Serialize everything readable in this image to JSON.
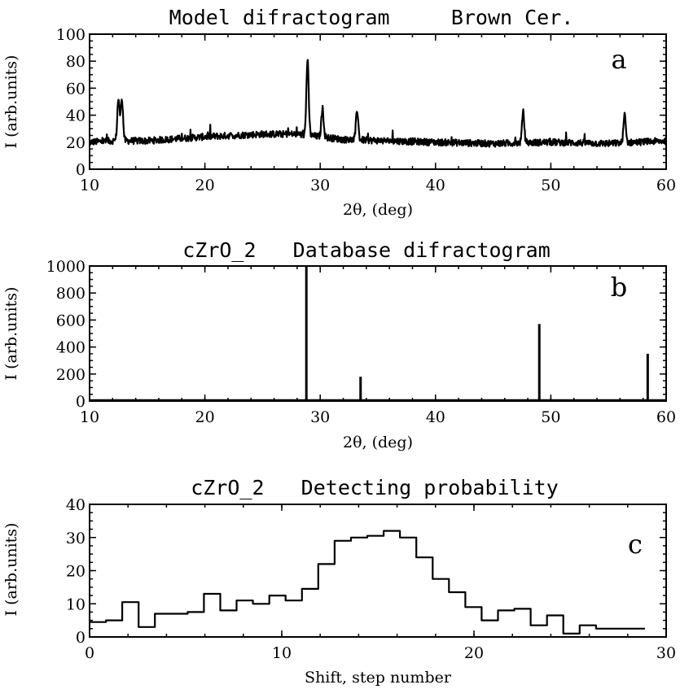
{
  "chart_data": [
    {
      "type": "line",
      "panel_letter": "a",
      "title": "Model difractogram     Brown Cer.",
      "xlabel": "2θ, (deg)",
      "ylabel": "I (arb.units)",
      "xlim": [
        10,
        60
      ],
      "ylim": [
        0,
        100
      ],
      "xticks": [
        10,
        20,
        30,
        40,
        50,
        60
      ],
      "yticks": [
        0,
        20,
        40,
        60,
        80,
        100
      ],
      "baseline": [
        [
          10,
          20
        ],
        [
          12,
          21
        ],
        [
          15,
          21
        ],
        [
          20,
          24
        ],
        [
          25,
          26
        ],
        [
          28,
          26
        ],
        [
          32,
          22
        ],
        [
          40,
          20
        ],
        [
          45,
          19
        ],
        [
          50,
          20
        ],
        [
          55,
          19
        ],
        [
          60,
          21
        ]
      ],
      "peaks": [
        [
          12.5,
          52
        ],
        [
          12.8,
          52
        ],
        [
          28.9,
          81
        ],
        [
          30.2,
          45
        ],
        [
          33.2,
          44
        ],
        [
          47.6,
          42
        ],
        [
          56.4,
          40
        ]
      ],
      "grid": false
    },
    {
      "type": "bar",
      "panel_letter": "b",
      "title": "cZrO_2   Database difractogram",
      "xlabel": "2θ, (deg)",
      "ylabel": "I (arb.units)",
      "xlim": [
        10,
        60
      ],
      "ylim": [
        0,
        1000
      ],
      "xticks": [
        10,
        20,
        30,
        40,
        50,
        60
      ],
      "yticks": [
        0,
        200,
        400,
        600,
        800,
        1000
      ],
      "x": [
        28.8,
        33.5,
        49.0,
        58.4
      ],
      "values": [
        1000,
        180,
        570,
        350
      ],
      "grid": false
    },
    {
      "type": "line",
      "panel_letter": "c",
      "title": "cZrO_2   Detecting probability",
      "xlabel": "Shift, step number",
      "ylabel": "I (arb.units)",
      "xlim": [
        0,
        30
      ],
      "ylim": [
        0,
        40
      ],
      "xticks": [
        0,
        10,
        20,
        30
      ],
      "yticks": [
        0,
        10,
        20,
        30,
        40
      ],
      "step_width": 0.85,
      "x": [
        0,
        0.85,
        1.7,
        2.55,
        3.4,
        4.25,
        5.1,
        5.95,
        6.8,
        7.65,
        8.5,
        9.35,
        10.2,
        11.05,
        11.9,
        12.75,
        13.6,
        14.45,
        15.3,
        16.15,
        17.0,
        17.85,
        18.7,
        19.55,
        20.4,
        21.25,
        22.1,
        22.95,
        23.8,
        24.65,
        25.5,
        26.35,
        27.2,
        28.05
      ],
      "values": [
        4.5,
        5,
        10.5,
        3,
        7,
        7,
        7.5,
        13,
        8,
        11,
        10,
        12.5,
        11,
        14.5,
        22,
        29,
        30,
        30.5,
        32,
        30,
        24,
        17.5,
        13.5,
        9,
        5,
        8,
        8.5,
        3.5,
        6.5,
        1,
        3.5,
        2.5,
        2.5,
        2.5
      ],
      "grid": false
    }
  ]
}
